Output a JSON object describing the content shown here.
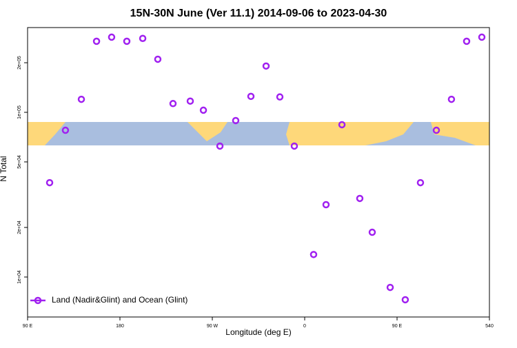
{
  "chart_data": {
    "type": "scatter",
    "title": "15N-30N June (Ver 11.1)   2014-09-06 to 2023-04-30",
    "x_label": "Longitude (deg E)",
    "y_label": "N Total",
    "xlim": [
      90,
      540
    ],
    "xticks": [
      {
        "value": 90,
        "label": "90 E"
      },
      180,
      {
        "value": 270,
        "label": "90 W"
      },
      {
        "value": 360,
        "label": "0"
      },
      {
        "value": 450,
        "label": "90 E"
      },
      540
    ],
    "ylim": [
      5720,
      327000
    ],
    "log_y": true,
    "yticks": [
      {
        "value": 10000,
        "label": "1e+04"
      },
      {
        "value": 20000,
        "label": "2e+04"
      },
      {
        "value": 50000,
        "label": "5e+04"
      },
      {
        "value": 100000,
        "label": "1e+05"
      },
      {
        "value": 200000,
        "label": "2e+05"
      }
    ],
    "legend": "bottomleft",
    "series": [
      {
        "name": "Land (Nadir&Glint) and Ocean (Glint)",
        "color": "#a020f0",
        "x": [
          111.5,
          126.9,
          142.4,
          157.2,
          171.9,
          186.7,
          202.2,
          216.9,
          231.7,
          248.5,
          261.3,
          277.4,
          292.8,
          307.6,
          322.4,
          335.8,
          349.9,
          368.7,
          380.8,
          396.3,
          413.7,
          425.8,
          443.3,
          458.0,
          472.8,
          488.3,
          503.0,
          517.8,
          532.6
        ],
        "values": [
          37400,
          77800,
          120000,
          270000,
          286000,
          270000,
          281000,
          210000,
          113000,
          117000,
          103000,
          62400,
          89100,
          125000,
          191000,
          124000,
          62400,
          13700,
          27500,
          84100,
          30000,
          18700,
          8650,
          7280,
          37400,
          77800,
          120000,
          270000,
          286000
        ]
      }
    ]
  }
}
